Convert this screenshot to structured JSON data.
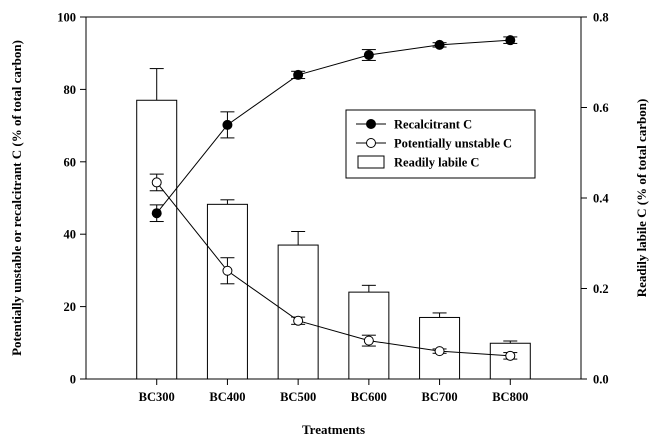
{
  "chart_data": {
    "type": "bar+line",
    "categories": [
      "BC300",
      "BC400",
      "BC500",
      "BC600",
      "BC700",
      "BC800"
    ],
    "xlabel": "Treatments",
    "ylabel_left": "Potentially unstable or recalcitrant C (% of total carbon)",
    "ylabel_right": "Readily labile C (% of total carbon)",
    "ylim_left": [
      0,
      100
    ],
    "ylim_right": [
      0,
      0.8
    ],
    "yticks_left": [
      "0",
      "20",
      "40",
      "60",
      "80",
      "100"
    ],
    "yticks_right": [
      "0.0",
      "0.2",
      "0.4",
      "0.6",
      "0.8"
    ],
    "grid": false,
    "legend_position": "center-right",
    "series": [
      {
        "name": "Recalcitrant C",
        "kind": "line",
        "marker": "filled-circle",
        "axis": "left",
        "values": [
          45.8,
          70.2,
          84.0,
          89.5,
          92.3,
          93.6
        ],
        "errors": [
          2.3,
          3.6,
          1.0,
          1.5,
          0.6,
          0.9
        ]
      },
      {
        "name": "Potentially unstable C",
        "kind": "line",
        "marker": "open-circle",
        "axis": "left",
        "values": [
          54.3,
          29.9,
          16.1,
          10.6,
          7.7,
          6.4
        ],
        "errors": [
          2.3,
          3.6,
          1.0,
          1.5,
          0.6,
          0.9
        ]
      },
      {
        "name": "Readily labile C",
        "kind": "bar",
        "axis": "right",
        "values": [
          0.616,
          0.386,
          0.296,
          0.192,
          0.136,
          0.079
        ],
        "errors": [
          0.07,
          0.01,
          0.03,
          0.015,
          0.01,
          0.005
        ]
      }
    ]
  }
}
